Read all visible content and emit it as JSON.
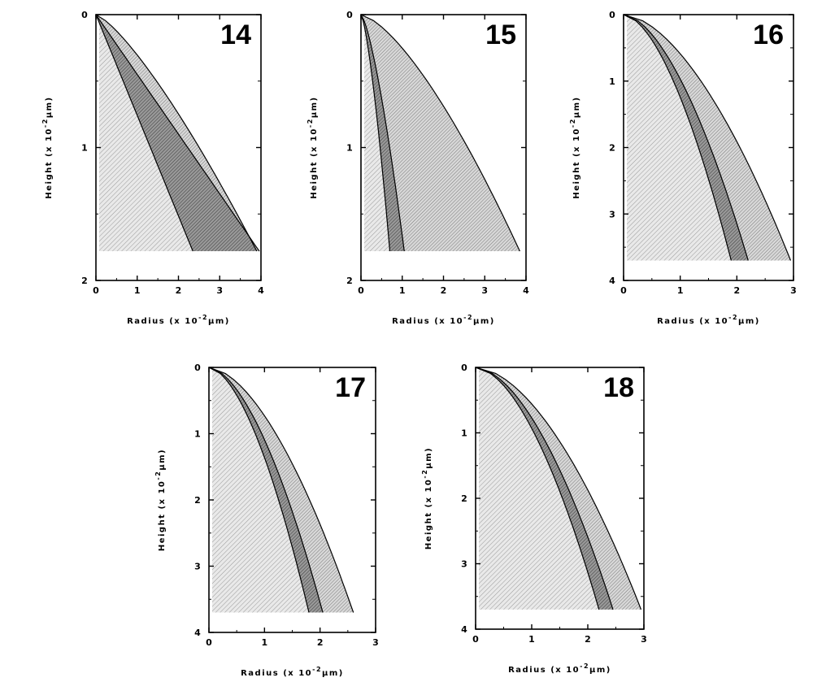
{
  "colors": {
    "outer_region": "#cfcfcf",
    "middle_band": "#8a8a8a",
    "inner_region": "#bdbdbd",
    "line": "#000000",
    "background": "#ffffff"
  },
  "chart_data": [
    {
      "type": "area",
      "panel_label": "14",
      "xlabel": "Radius  (x  10",
      "xlabel_exp": "-2",
      "xlabel_unit": "μm)",
      "ylabel": "Height  (x  10",
      "ylabel_exp": "-2",
      "ylabel_unit": "μm)",
      "xlim": [
        0,
        4
      ],
      "ylim": [
        0,
        2
      ],
      "y_inverted": true,
      "x_ticks": [
        "0",
        "1",
        "2",
        "3",
        "4"
      ],
      "y_ticks": [
        "0",
        "1",
        "2"
      ],
      "base_height": 1.78,
      "curves": [
        {
          "name": "outer",
          "x": [
            0,
            3.96
          ],
          "y": [
            0,
            1.78
          ],
          "power": 1.0
        },
        {
          "name": "middle",
          "x": [
            0,
            3.9
          ],
          "y": [
            0,
            1.78
          ],
          "power": 1.3
        },
        {
          "name": "inner",
          "x": [
            0,
            2.35
          ],
          "y": [
            0,
            1.78
          ],
          "power": 1.0
        }
      ]
    },
    {
      "type": "area",
      "panel_label": "15",
      "xlabel": "Radius  (x  10",
      "xlabel_exp": "-2",
      "xlabel_unit": "μm)",
      "ylabel": "Height  (x  10",
      "ylabel_exp": "-2",
      "ylabel_unit": "μm)",
      "xlim": [
        0,
        4
      ],
      "ylim": [
        0,
        2
      ],
      "y_inverted": true,
      "x_ticks": [
        "0",
        "1",
        "2",
        "3",
        "4"
      ],
      "y_ticks": [
        "0",
        "1",
        "2"
      ],
      "base_height": 1.78,
      "curves": [
        {
          "name": "outer",
          "x": [
            0,
            3.85
          ],
          "y": [
            0,
            1.78
          ],
          "power": 1.45
        },
        {
          "name": "middle",
          "x": [
            0,
            1.05
          ],
          "y": [
            0,
            1.78
          ],
          "power": 1.4
        },
        {
          "name": "inner",
          "x": [
            0,
            0.7
          ],
          "y": [
            0,
            1.78
          ],
          "power": 1.4
        }
      ]
    },
    {
      "type": "area",
      "panel_label": "16",
      "xlabel": "Radius  (x  10",
      "xlabel_exp": "-2",
      "xlabel_unit": "μm)",
      "ylabel": "Height  (x  10",
      "ylabel_exp": "-2",
      "ylabel_unit": "μm)",
      "xlim": [
        0,
        3
      ],
      "ylim": [
        0,
        4
      ],
      "y_inverted": true,
      "x_ticks": [
        "0",
        "1",
        "2",
        "3"
      ],
      "y_ticks": [
        "0",
        "1",
        "2",
        "3",
        "4"
      ],
      "base_height": 3.7,
      "curves": [
        {
          "name": "outer",
          "x": [
            0,
            2.95
          ],
          "y": [
            0,
            3.7
          ],
          "power": 1.7
        },
        {
          "name": "middle",
          "x": [
            0,
            2.2
          ],
          "y": [
            0,
            3.7
          ],
          "power": 1.7
        },
        {
          "name": "inner",
          "x": [
            0,
            1.9
          ],
          "y": [
            0,
            3.7
          ],
          "power": 1.7
        }
      ]
    },
    {
      "type": "area",
      "panel_label": "17",
      "xlabel": "Radius  (x  10",
      "xlabel_exp": "-2",
      "xlabel_unit": "μm)",
      "ylabel": "Height  (x  10",
      "ylabel_exp": "-2",
      "ylabel_unit": "μm)",
      "xlim": [
        0,
        3
      ],
      "ylim": [
        0,
        4
      ],
      "y_inverted": true,
      "x_ticks": [
        "0",
        "1",
        "2",
        "3"
      ],
      "y_ticks": [
        "0",
        "1",
        "2",
        "3",
        "4"
      ],
      "base_height": 3.7,
      "curves": [
        {
          "name": "outer",
          "x": [
            0,
            2.6
          ],
          "y": [
            0,
            3.7
          ],
          "power": 1.7
        },
        {
          "name": "middle",
          "x": [
            0,
            2.05
          ],
          "y": [
            0,
            3.7
          ],
          "power": 1.7
        },
        {
          "name": "inner",
          "x": [
            0,
            1.8
          ],
          "y": [
            0,
            3.7
          ],
          "power": 1.7
        }
      ]
    },
    {
      "type": "area",
      "panel_label": "18",
      "xlabel": "Radius  (x  10",
      "xlabel_exp": "-2",
      "xlabel_unit": "μm)",
      "ylabel": "Height  (x  10",
      "ylabel_exp": "-2",
      "ylabel_unit": "μm)",
      "xlim": [
        0,
        3
      ],
      "ylim": [
        0,
        4
      ],
      "y_inverted": true,
      "x_ticks": [
        "0",
        "1",
        "2",
        "3"
      ],
      "y_ticks": [
        "0",
        "1",
        "2",
        "3",
        "4"
      ],
      "base_height": 3.7,
      "curves": [
        {
          "name": "outer",
          "x": [
            0,
            2.95
          ],
          "y": [
            0,
            3.7
          ],
          "power": 1.75
        },
        {
          "name": "middle",
          "x": [
            0,
            2.45
          ],
          "y": [
            0,
            3.7
          ],
          "power": 1.75
        },
        {
          "name": "inner",
          "x": [
            0,
            2.2
          ],
          "y": [
            0,
            3.7
          ],
          "power": 1.75
        }
      ]
    }
  ]
}
